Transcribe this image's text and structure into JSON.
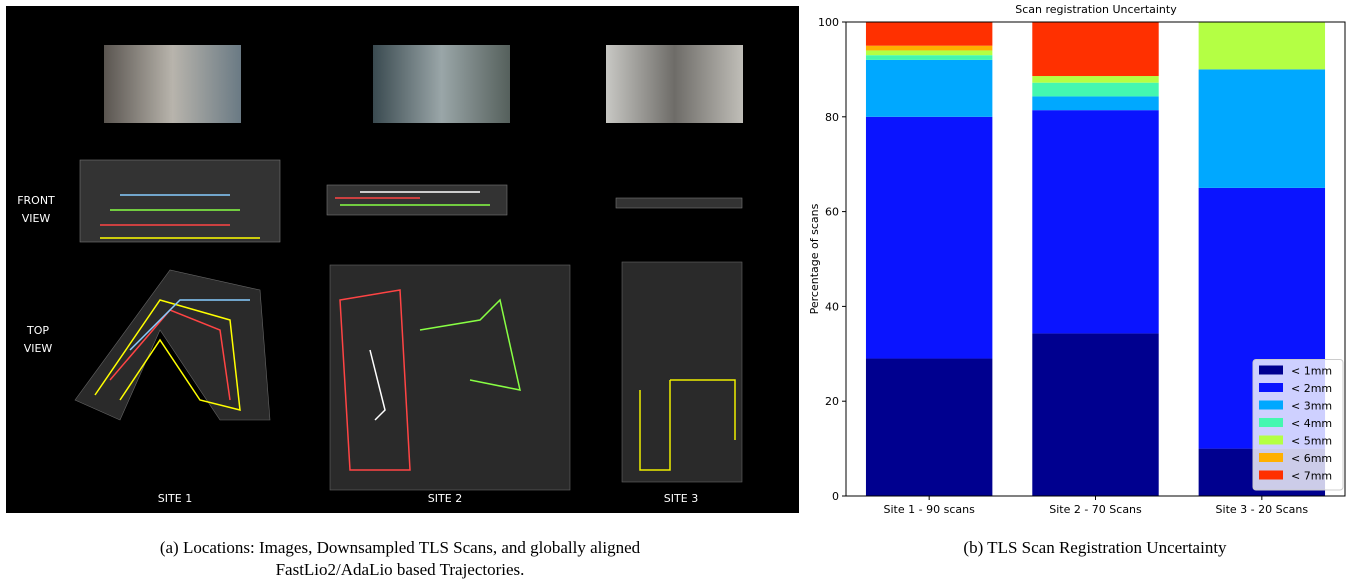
{
  "panel_a": {
    "front_view": [
      "FRONT",
      "VIEW"
    ],
    "top_view": [
      "TOP",
      "VIEW"
    ],
    "sites": [
      "SITE 1",
      "SITE 2",
      "SITE 3"
    ],
    "caption": "(a) Locations: Images, Downsampled TLS Scans, and globally aligned FastLio2/AdaLio based Trajectories."
  },
  "chart_data": {
    "type": "stacked_bar",
    "title": "Scan registration Uncertainty",
    "y_label": "Percentage of scans",
    "categories": [
      "Site 1 - 90 scans",
      "Site 2 - 70 Scans",
      "Site 3 - 20 Scans"
    ],
    "series": [
      {
        "name": "< 1mm",
        "color": "#00008f",
        "values": [
          29,
          34.3,
          10
        ]
      },
      {
        "name": "< 2mm",
        "color": "#0a14ff",
        "values": [
          51,
          47.1,
          55
        ]
      },
      {
        "name": "< 3mm",
        "color": "#00a8ff",
        "values": [
          12,
          2.9,
          25
        ]
      },
      {
        "name": "< 4mm",
        "color": "#44f7b0",
        "values": [
          1,
          2.9,
          0
        ]
      },
      {
        "name": "< 5mm",
        "color": "#b4ff44",
        "values": [
          1,
          1.4,
          10
        ]
      },
      {
        "name": "< 6mm",
        "color": "#ffb000",
        "values": [
          1,
          0,
          0
        ]
      },
      {
        "name": "< 7mm",
        "color": "#ff3000",
        "values": [
          5,
          11.4,
          0
        ]
      }
    ],
    "ylim": [
      0,
      100
    ],
    "yticks": [
      0,
      20,
      40,
      60,
      80,
      100
    ],
    "legend": "lower right",
    "caption": "(b) TLS Scan Registration Uncertainty"
  }
}
